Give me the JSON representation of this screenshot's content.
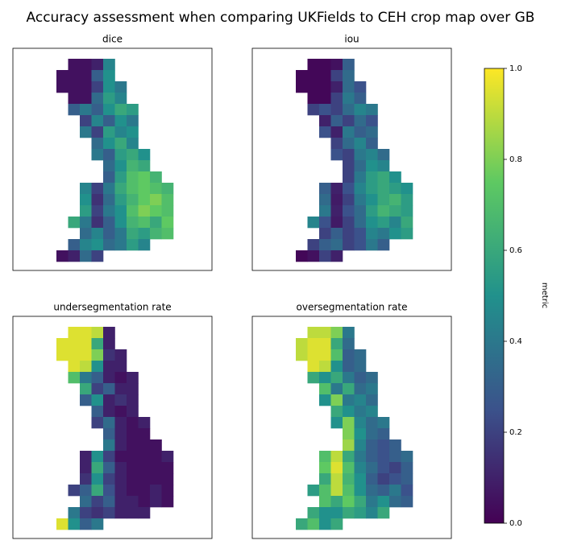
{
  "title": "Accuracy assessment when comparing UKFields to CEH crop map over GB",
  "colorbar": {
    "label": "metric",
    "lim": [
      0,
      1
    ],
    "ticks": [
      {
        "value": 0,
        "label": "0.0"
      },
      {
        "value": 0.2,
        "label": "0.2"
      },
      {
        "value": 0.4,
        "label": "0.4"
      },
      {
        "value": 0.6,
        "label": "0.6"
      },
      {
        "value": 0.8,
        "label": "0.8"
      },
      {
        "value": 1,
        "label": "1.0"
      }
    ]
  },
  "chart_data": [
    {
      "type": "heatmap",
      "title": "dice",
      "values": [
        [
          null,
          0.05,
          0.05,
          0.1,
          0.45,
          null,
          null,
          null,
          null,
          null
        ],
        [
          0.05,
          0.05,
          0.05,
          0.3,
          0.5,
          null,
          null,
          null,
          null,
          null
        ],
        [
          0.05,
          0.05,
          0.05,
          0.2,
          0.5,
          0.4,
          null,
          null,
          null,
          null
        ],
        [
          null,
          0.05,
          0.05,
          0.35,
          0.55,
          0.45,
          null,
          null,
          null,
          null
        ],
        [
          null,
          0.3,
          0.4,
          0.3,
          0.5,
          0.6,
          0.55,
          null,
          null,
          null
        ],
        [
          null,
          null,
          0.2,
          0.45,
          0.3,
          0.5,
          0.4,
          null,
          null,
          null
        ],
        [
          null,
          null,
          0.4,
          0.2,
          0.55,
          0.45,
          0.5,
          null,
          null,
          null
        ],
        [
          null,
          null,
          null,
          0.35,
          0.5,
          0.6,
          0.45,
          null,
          null,
          null
        ],
        [
          null,
          null,
          null,
          0.4,
          0.3,
          0.55,
          0.6,
          0.5,
          null,
          null
        ],
        [
          null,
          null,
          null,
          null,
          0.35,
          0.5,
          0.65,
          0.6,
          null,
          null
        ],
        [
          null,
          null,
          null,
          null,
          0.3,
          0.55,
          0.7,
          0.75,
          0.65,
          null
        ],
        [
          null,
          null,
          0.45,
          0.2,
          0.4,
          0.6,
          0.7,
          0.75,
          0.7,
          0.65
        ],
        [
          null,
          null,
          0.5,
          0.15,
          0.35,
          0.55,
          0.65,
          0.75,
          0.8,
          0.7
        ],
        [
          null,
          null,
          0.55,
          0.2,
          0.4,
          0.5,
          0.7,
          0.8,
          0.75,
          0.7
        ],
        [
          null,
          0.6,
          0.4,
          0.15,
          0.3,
          0.5,
          0.65,
          0.7,
          0.6,
          0.75
        ],
        [
          null,
          null,
          0.35,
          0.45,
          0.3,
          0.4,
          0.6,
          0.55,
          0.65,
          0.7
        ],
        [
          null,
          0.3,
          0.45,
          0.5,
          0.35,
          0.4,
          0.55,
          0.45,
          null,
          null
        ],
        [
          0.05,
          0.1,
          0.35,
          0.2,
          null,
          null,
          null,
          null,
          null,
          null
        ]
      ]
    },
    {
      "type": "heatmap",
      "title": "iou",
      "values": [
        [
          null,
          0.02,
          0.02,
          0.05,
          0.3,
          null,
          null,
          null,
          null,
          null
        ],
        [
          0.02,
          0.02,
          0.02,
          0.2,
          0.35,
          null,
          null,
          null,
          null,
          null
        ],
        [
          0.02,
          0.02,
          0.02,
          0.1,
          0.35,
          0.25,
          null,
          null,
          null,
          null
        ],
        [
          null,
          0.02,
          0.02,
          0.2,
          0.4,
          0.3,
          null,
          null,
          null,
          null
        ],
        [
          null,
          0.2,
          0.25,
          0.2,
          0.35,
          0.45,
          0.4,
          null,
          null,
          null
        ],
        [
          null,
          null,
          0.1,
          0.3,
          0.2,
          0.35,
          0.25,
          null,
          null,
          null
        ],
        [
          null,
          null,
          0.25,
          0.1,
          0.4,
          0.3,
          0.35,
          null,
          null,
          null
        ],
        [
          null,
          null,
          null,
          0.2,
          0.35,
          0.45,
          0.3,
          null,
          null,
          null
        ],
        [
          null,
          null,
          null,
          0.25,
          0.2,
          0.4,
          0.45,
          0.35,
          null,
          null
        ],
        [
          null,
          null,
          null,
          null,
          0.2,
          0.35,
          0.5,
          0.45,
          null,
          null
        ],
        [
          null,
          null,
          null,
          null,
          0.2,
          0.4,
          0.55,
          0.6,
          0.5,
          null
        ],
        [
          null,
          null,
          0.3,
          0.1,
          0.25,
          0.45,
          0.55,
          0.6,
          0.55,
          0.5
        ],
        [
          null,
          null,
          0.35,
          0.08,
          0.2,
          0.4,
          0.5,
          0.6,
          0.65,
          0.55
        ],
        [
          null,
          null,
          0.4,
          0.1,
          0.25,
          0.35,
          0.55,
          0.65,
          0.6,
          0.55
        ],
        [
          null,
          0.45,
          0.25,
          0.08,
          0.2,
          0.35,
          0.5,
          0.55,
          0.45,
          0.6
        ],
        [
          null,
          null,
          0.2,
          0.3,
          0.2,
          0.25,
          0.45,
          0.4,
          0.5,
          0.55
        ],
        [
          null,
          0.2,
          0.3,
          0.35,
          0.2,
          0.25,
          0.4,
          0.3,
          null,
          null
        ],
        [
          0.02,
          0.05,
          0.2,
          0.1,
          null,
          null,
          null,
          null,
          null,
          null
        ]
      ]
    },
    {
      "type": "heatmap",
      "title": "undersegmentation rate",
      "values": [
        [
          null,
          0.95,
          0.95,
          0.9,
          0.1,
          null,
          null,
          null,
          null,
          null
        ],
        [
          0.95,
          0.95,
          0.95,
          0.6,
          0.1,
          null,
          null,
          null,
          null,
          null
        ],
        [
          0.95,
          0.95,
          0.95,
          0.8,
          0.15,
          0.1,
          null,
          null,
          null,
          null
        ],
        [
          null,
          0.95,
          0.9,
          0.5,
          0.1,
          0.1,
          null,
          null,
          null,
          null
        ],
        [
          null,
          0.7,
          0.4,
          0.3,
          0.1,
          0.05,
          0.1,
          null,
          null,
          null
        ],
        [
          null,
          null,
          0.6,
          0.2,
          0.3,
          0.1,
          0.1,
          null,
          null,
          null
        ],
        [
          null,
          null,
          0.3,
          0.5,
          0.1,
          0.15,
          0.1,
          null,
          null,
          null
        ],
        [
          null,
          null,
          null,
          0.3,
          0.1,
          0.05,
          0.1,
          null,
          null,
          null
        ],
        [
          null,
          null,
          null,
          0.2,
          0.35,
          0.1,
          0.05,
          0.1,
          null,
          null
        ],
        [
          null,
          null,
          null,
          null,
          0.3,
          0.1,
          0.05,
          0.05,
          null,
          null
        ],
        [
          null,
          null,
          null,
          null,
          0.4,
          0.1,
          0.05,
          0.05,
          0.05,
          null
        ],
        [
          null,
          null,
          0.1,
          0.5,
          0.2,
          0.05,
          0.05,
          0.05,
          0.05,
          0.1
        ],
        [
          null,
          null,
          0.1,
          0.6,
          0.3,
          0.1,
          0.05,
          0.05,
          0.05,
          0.05
        ],
        [
          null,
          null,
          0.15,
          0.5,
          0.2,
          0.1,
          0.05,
          0.05,
          0.05,
          0.05
        ],
        [
          null,
          0.2,
          0.3,
          0.6,
          0.25,
          0.1,
          0.05,
          0.05,
          0.1,
          0.05
        ],
        [
          null,
          null,
          0.35,
          0.2,
          0.3,
          0.1,
          0.1,
          0.05,
          0.1,
          0.05
        ],
        [
          null,
          0.4,
          0.2,
          0.15,
          0.2,
          0.1,
          0.1,
          0.1,
          null,
          null
        ],
        [
          0.95,
          0.5,
          0.3,
          0.4,
          null,
          null,
          null,
          null,
          null,
          null
        ]
      ]
    },
    {
      "type": "heatmap",
      "title": "oversegmentation rate",
      "values": [
        [
          null,
          0.9,
          0.9,
          0.8,
          0.4,
          null,
          null,
          null,
          null,
          null
        ],
        [
          0.9,
          0.95,
          0.95,
          0.6,
          0.35,
          null,
          null,
          null,
          null,
          null
        ],
        [
          0.9,
          0.95,
          0.95,
          0.7,
          0.3,
          0.35,
          null,
          null,
          null,
          null
        ],
        [
          null,
          0.95,
          0.9,
          0.5,
          0.3,
          0.35,
          null,
          null,
          null,
          null
        ],
        [
          null,
          0.6,
          0.5,
          0.6,
          0.4,
          0.3,
          0.35,
          null,
          null,
          null
        ],
        [
          null,
          null,
          0.7,
          0.4,
          0.6,
          0.35,
          0.4,
          null,
          null,
          null
        ],
        [
          null,
          null,
          0.5,
          0.8,
          0.4,
          0.45,
          0.35,
          null,
          null,
          null
        ],
        [
          null,
          null,
          null,
          0.6,
          0.5,
          0.4,
          0.45,
          null,
          null,
          null
        ],
        [
          null,
          null,
          null,
          0.5,
          0.8,
          0.45,
          0.35,
          0.4,
          null,
          null
        ],
        [
          null,
          null,
          null,
          null,
          0.8,
          0.5,
          0.35,
          0.3,
          null,
          null
        ],
        [
          null,
          null,
          null,
          null,
          0.85,
          0.45,
          0.3,
          0.25,
          0.3,
          null
        ],
        [
          null,
          null,
          0.7,
          0.9,
          0.6,
          0.4,
          0.3,
          0.25,
          0.3,
          0.35
        ],
        [
          null,
          null,
          0.75,
          0.95,
          0.7,
          0.45,
          0.35,
          0.25,
          0.2,
          0.3
        ],
        [
          null,
          null,
          0.6,
          0.9,
          0.65,
          0.5,
          0.3,
          0.2,
          0.25,
          0.3
        ],
        [
          null,
          0.55,
          0.7,
          0.9,
          0.7,
          0.5,
          0.35,
          0.3,
          0.4,
          0.25
        ],
        [
          null,
          null,
          0.7,
          0.6,
          0.75,
          0.6,
          0.4,
          0.5,
          0.35,
          0.3
        ],
        [
          null,
          0.6,
          0.5,
          0.5,
          0.6,
          0.55,
          0.45,
          0.6,
          null,
          null
        ],
        [
          0.6,
          0.7,
          0.5,
          0.6,
          null,
          null,
          null,
          null,
          null,
          null
        ]
      ]
    }
  ]
}
